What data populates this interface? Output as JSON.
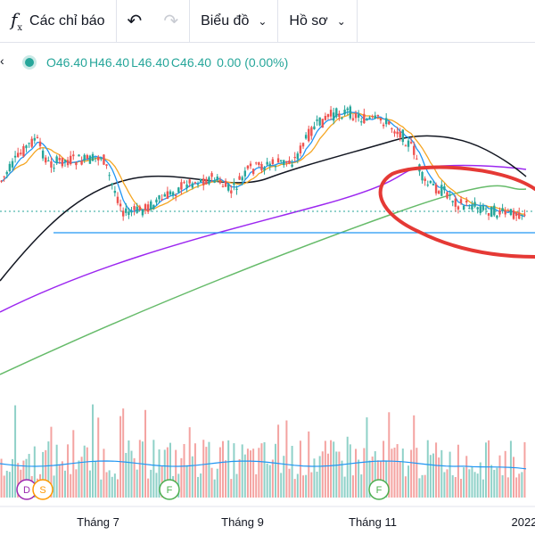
{
  "toolbar": {
    "indicators_label": "Các chỉ báo",
    "chart_type_label": "Biểu đồ",
    "profile_label": "Hồ sơ"
  },
  "legend": {
    "o": "O46.40",
    "h": "H46.40",
    "l": "L46.40",
    "c": "C46.40",
    "change": "0.00 (0.00%)"
  },
  "colors": {
    "up": "#26a69a",
    "down": "#ef5350",
    "ma_fast": "#2196f3",
    "ma_mid": "#f5a623",
    "ma_slow": "#131722",
    "ma_purple": "#9c27f0",
    "ma_green": "#66bb6a",
    "hline": "#2196f3",
    "annotation": "#e53935"
  },
  "chart_data": {
    "type": "candlestick",
    "x_tick_labels": [
      "Tháng 7",
      "Tháng 9",
      "Tháng 11",
      "2022"
    ],
    "last_price": 46.4,
    "markers": [
      "D",
      "S",
      "F",
      "F"
    ],
    "annotation": "red hand-drawn circle around latest price decline",
    "horizontal_line": "support level below recent lows"
  }
}
